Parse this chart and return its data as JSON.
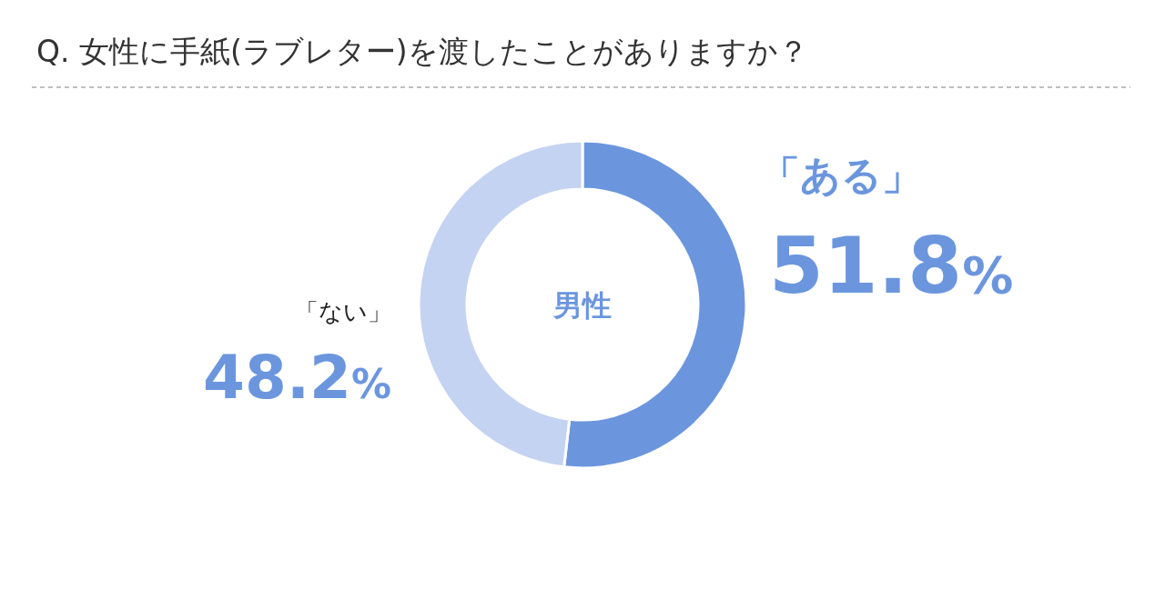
{
  "chart_data": {
    "type": "donut",
    "title": "Q. 女性に手紙(ラブレター)を渡したことがありますか？",
    "categories": [
      "「ある」",
      "「ない」"
    ],
    "values": [
      51.8,
      48.2
    ],
    "colors": [
      "#6b96de",
      "#c5d3f2"
    ],
    "value_labels": [
      "51.8%",
      "48.2%"
    ],
    "annotations": [
      "男性"
    ],
    "legend": false
  }
}
